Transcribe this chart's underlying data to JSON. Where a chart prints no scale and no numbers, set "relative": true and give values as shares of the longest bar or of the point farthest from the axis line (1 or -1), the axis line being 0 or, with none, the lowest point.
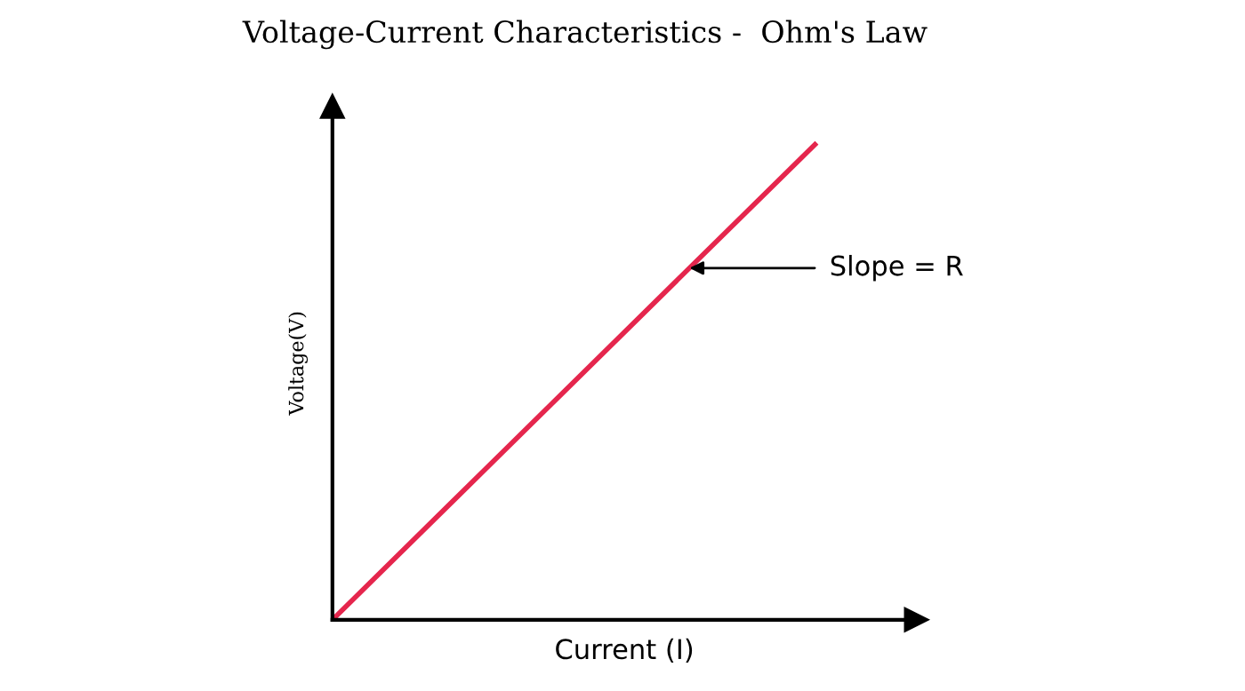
{
  "chart_data": {
    "type": "line",
    "title": "Voltage-Current Characteristics -  Ohm's Law",
    "xlabel": "Current (I)",
    "ylabel": "Voltage(V)",
    "relative": true,
    "categories": [
      null,
      null
    ],
    "series": [
      {
        "color": "#e5264d",
        "values": [
          0,
          1
        ]
      }
    ],
    "annotations": [
      "Slope = R"
    ],
    "grid": false
  }
}
